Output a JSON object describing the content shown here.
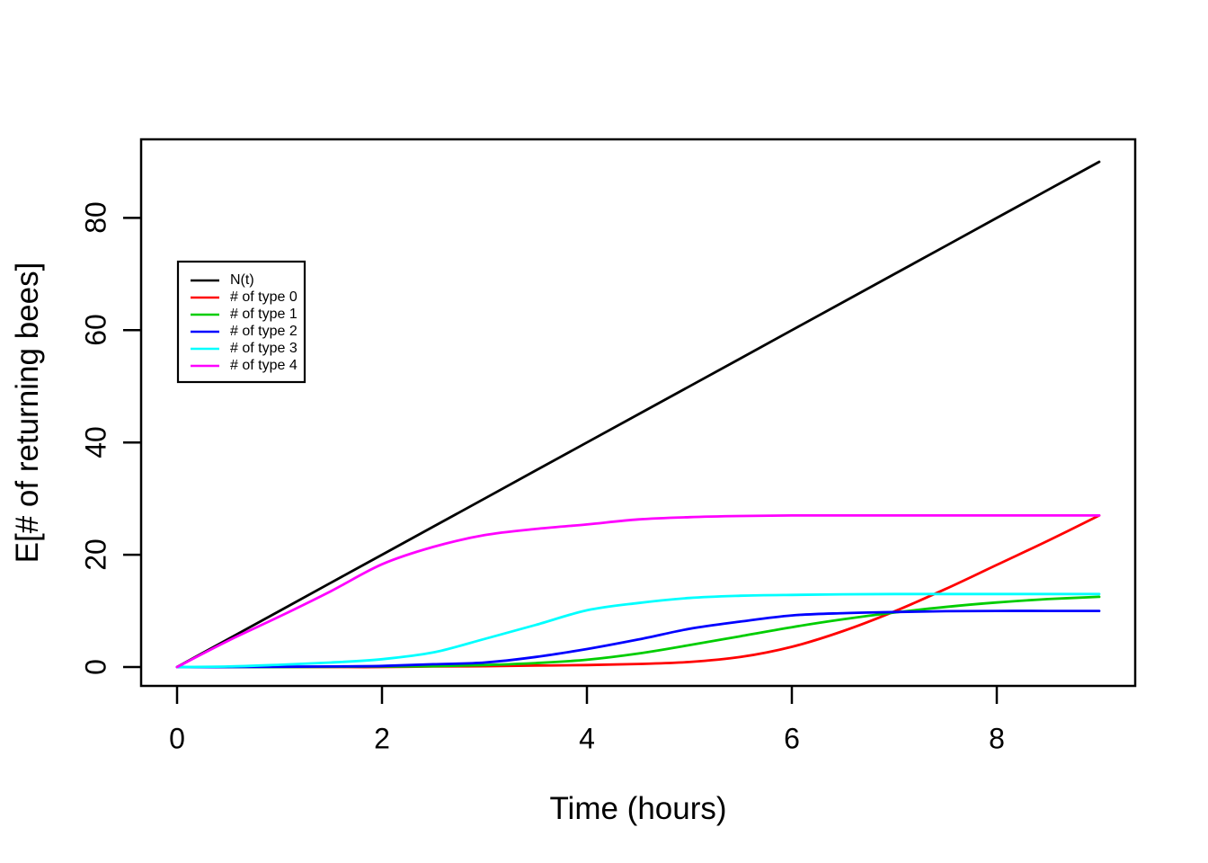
{
  "chart_data": {
    "type": "line",
    "title": "",
    "xlabel": "Time (hours)",
    "ylabel": "E[# of returning bees]",
    "xlim": [
      0,
      9
    ],
    "ylim": [
      0,
      90
    ],
    "x_ticks": [
      0,
      2,
      4,
      6,
      8
    ],
    "y_ticks": [
      0,
      20,
      40,
      60,
      80
    ],
    "grid": false,
    "legend_position": "upper-left",
    "x": [
      0,
      0.5,
      1,
      1.5,
      2,
      2.5,
      3,
      3.5,
      4,
      4.5,
      5,
      5.5,
      6,
      6.5,
      7,
      7.5,
      8,
      8.5,
      9
    ],
    "series": [
      {
        "name": "N(t)",
        "color": "#000000",
        "values": [
          0,
          5,
          10,
          15,
          20,
          25,
          30,
          35,
          40,
          45,
          50,
          55,
          60,
          65,
          70,
          75,
          80,
          85,
          90
        ]
      },
      {
        "name": "# of type 0",
        "color": "#FF0000",
        "values": [
          0,
          0,
          0,
          0,
          0,
          0.1,
          0.15,
          0.25,
          0.35,
          0.55,
          0.9,
          1.8,
          3.6,
          6.4,
          9.9,
          13.9,
          18.2,
          22.5,
          27
        ]
      },
      {
        "name": "# of type 1",
        "color": "#00CD00",
        "values": [
          0,
          0,
          0,
          0.05,
          0.1,
          0.15,
          0.35,
          0.7,
          1.3,
          2.4,
          3.9,
          5.5,
          7.1,
          8.5,
          9.7,
          10.7,
          11.5,
          12.1,
          12.5
        ]
      },
      {
        "name": "# of type 2",
        "color": "#0000FF",
        "values": [
          0,
          0,
          0.05,
          0.1,
          0.2,
          0.5,
          0.8,
          1.8,
          3.2,
          4.9,
          6.8,
          8.1,
          9.2,
          9.6,
          9.8,
          9.95,
          10,
          10,
          10
        ]
      },
      {
        "name": "# of type 3",
        "color": "#00FFFF",
        "values": [
          0,
          0.1,
          0.4,
          0.8,
          1.4,
          2.6,
          5.0,
          7.5,
          10.1,
          11.4,
          12.3,
          12.7,
          12.85,
          12.95,
          13,
          13,
          13,
          13,
          13
        ]
      },
      {
        "name": "# of type 4",
        "color": "#FF00FF",
        "values": [
          0,
          4.7,
          9.0,
          13.5,
          18.3,
          21.4,
          23.5,
          24.6,
          25.4,
          26.3,
          26.7,
          26.9,
          27,
          27,
          27,
          27,
          27,
          27,
          27
        ]
      }
    ]
  }
}
